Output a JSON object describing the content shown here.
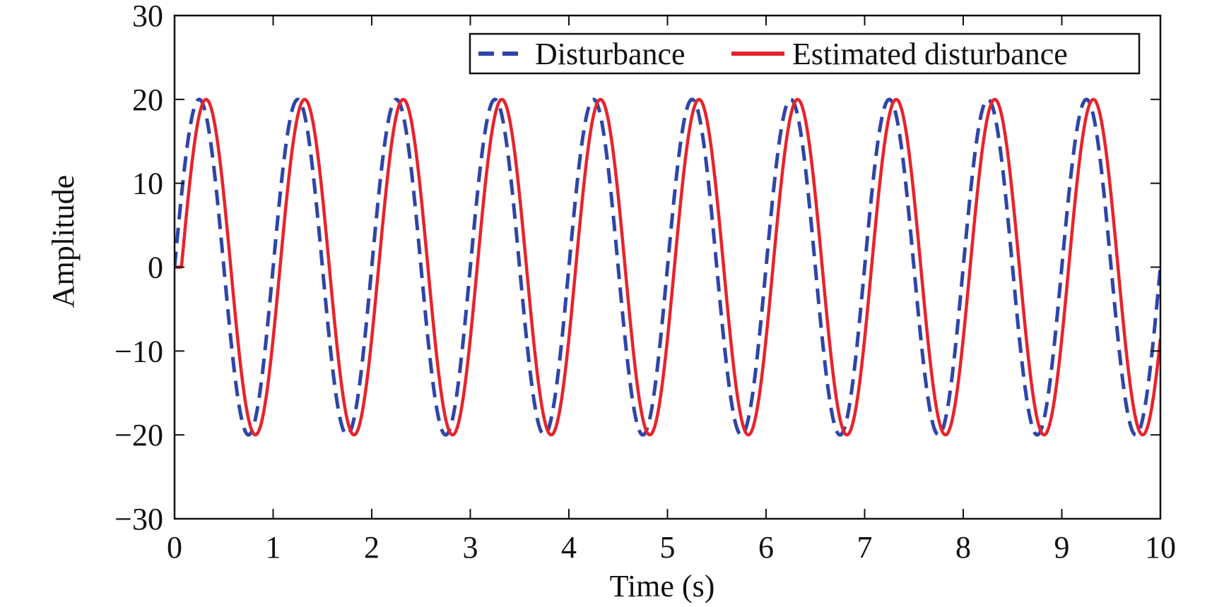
{
  "chart_data": {
    "type": "line",
    "title": "",
    "xlabel": "Time (s)",
    "ylabel": "Amplitude",
    "xlim": [
      0,
      10
    ],
    "ylim": [
      -30,
      30
    ],
    "xticks": [
      0,
      1,
      2,
      3,
      4,
      5,
      6,
      7,
      8,
      9,
      10
    ],
    "yticks": [
      -30,
      -20,
      -10,
      0,
      10,
      20,
      30
    ],
    "xtick_labels": [
      "0",
      "1",
      "2",
      "3",
      "4",
      "5",
      "6",
      "7",
      "8",
      "9",
      "10"
    ],
    "ytick_labels": [
      "−30",
      "−20",
      "−10",
      "0",
      "10",
      "20",
      "30"
    ],
    "grid": false,
    "legend_position": "top-right",
    "series": [
      {
        "name": "Disturbance",
        "style": "dashed",
        "color": "#2e45a8",
        "function": "20*sin(2*pi*t)",
        "amplitude": 20,
        "frequency_hz": 1,
        "phase_delay_s": 0
      },
      {
        "name": "Estimated disturbance",
        "style": "solid",
        "color": "#e8232c",
        "function": "20*sin(2*pi*(t-0.07)), starts at 0",
        "amplitude": 20,
        "frequency_hz": 1,
        "phase_delay_s": 0.07
      }
    ]
  }
}
